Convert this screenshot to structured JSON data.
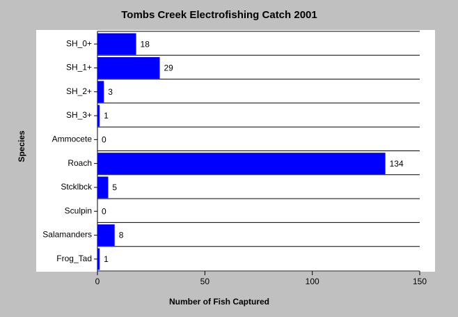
{
  "chart_data": {
    "type": "bar",
    "orientation": "horizontal",
    "title": "Tombs Creek Electrofishing Catch 2001",
    "x_label": "Number of Fish Captured",
    "y_label": "Species",
    "categories": [
      "SH_0+",
      "SH_1+",
      "SH_2+",
      "SH_3+",
      "Ammocete",
      "Roach",
      "Stcklbck",
      "Sculpin",
      "Salamanders",
      "Frog_Tad"
    ],
    "values": [
      18,
      29,
      3,
      1,
      0,
      134,
      5,
      0,
      8,
      1
    ],
    "color": "#0000ff",
    "xlim": [
      0,
      150
    ],
    "xticks": [
      0,
      50,
      100,
      150
    ]
  }
}
